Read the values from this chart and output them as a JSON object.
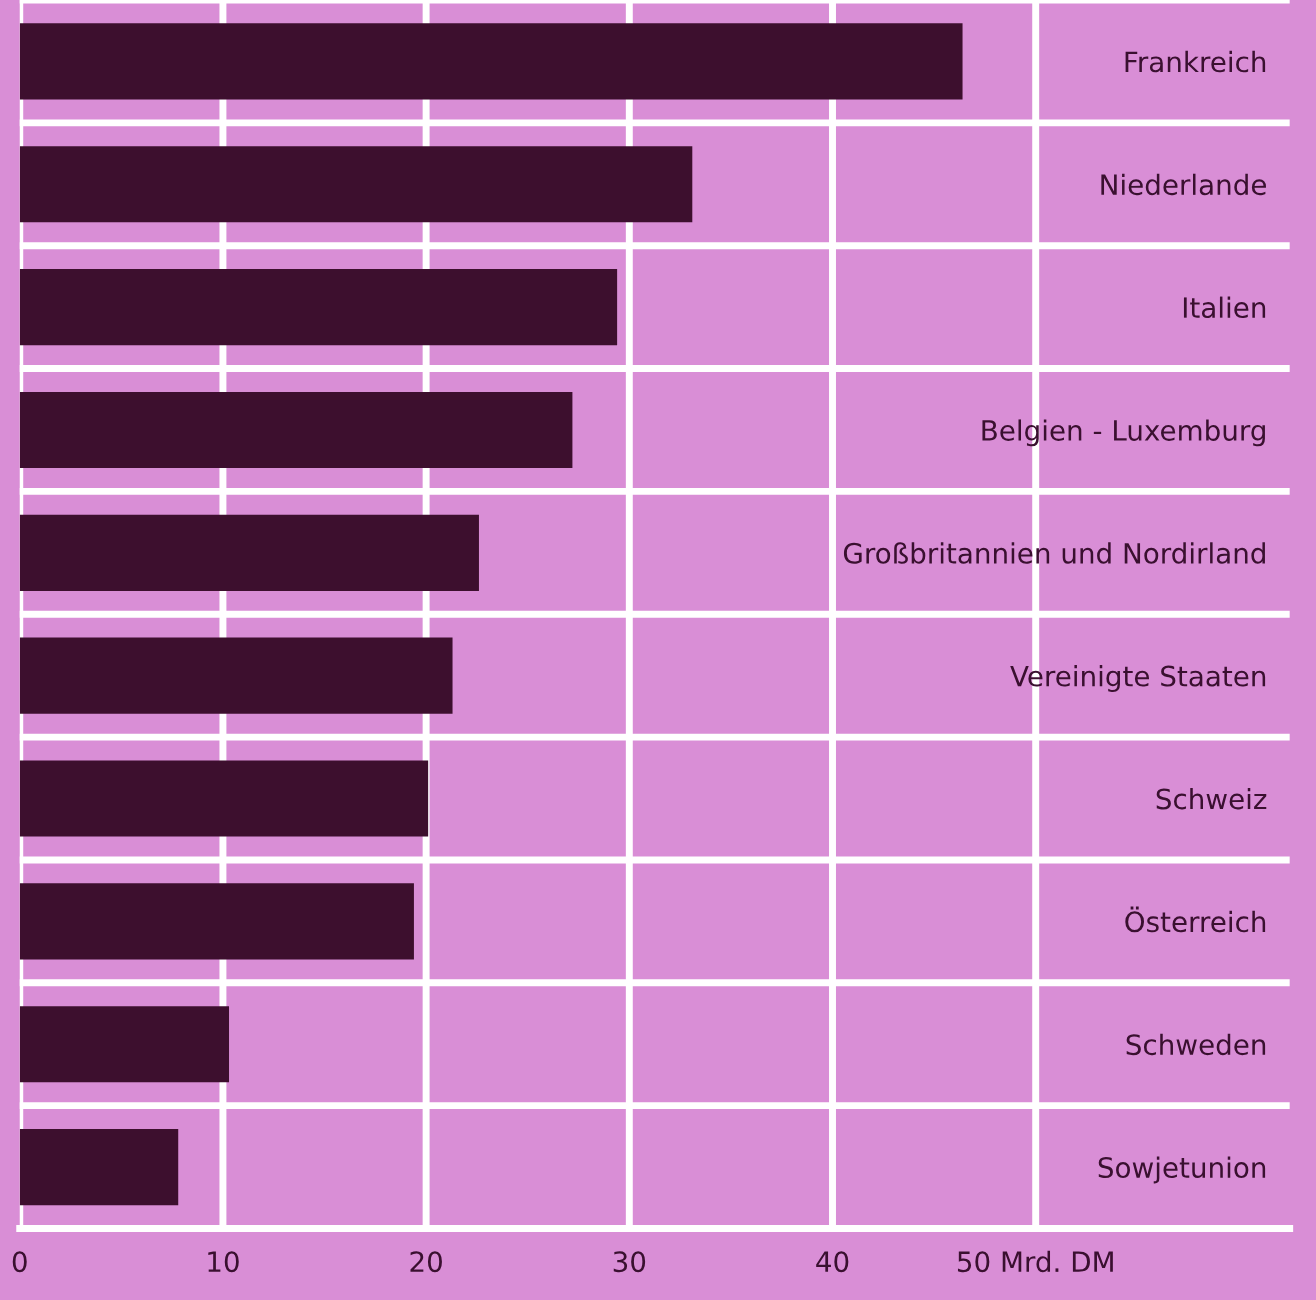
{
  "chart_data": {
    "type": "bar",
    "orientation": "horizontal",
    "categories": [
      "Frankreich",
      "Niederlande",
      "Italien",
      "Belgien - Luxemburg",
      "Großbritannien und Nordirland",
      "Vereinigte Staaten",
      "Schweiz",
      "Österreich",
      "Schweden",
      "Sowjetunion"
    ],
    "values": [
      46.4,
      33.1,
      29.4,
      27.2,
      22.6,
      21.3,
      20.1,
      19.4,
      10.3,
      7.8
    ],
    "color": "#3d0f2e",
    "xlim": [
      0,
      62.5
    ],
    "xticks": [
      0,
      10,
      20,
      30,
      40,
      {
        "value": 50,
        "label": "50 Mrd. DM"
      }
    ],
    "grid": true
  }
}
